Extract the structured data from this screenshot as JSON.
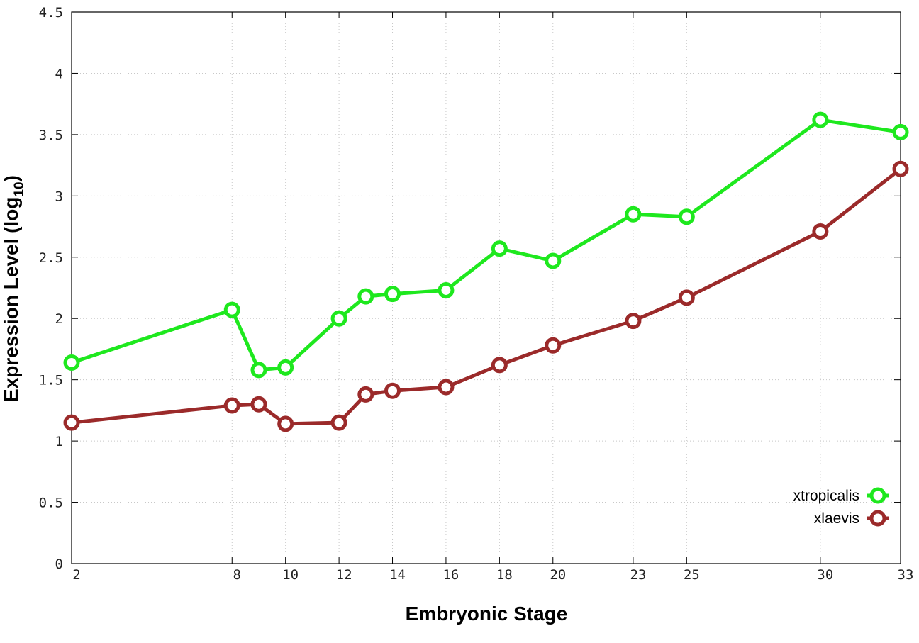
{
  "chart_data": {
    "type": "line",
    "xlabel": "Embryonic Stage",
    "ylabel": "Expression Level (log",
    "ylabel_subscript": "10",
    "ylabel_close": ")",
    "xlim": [
      2,
      33
    ],
    "ylim": [
      0,
      4.5
    ],
    "x_ticks": [
      2,
      8,
      10,
      12,
      14,
      16,
      18,
      20,
      23,
      25,
      30,
      33
    ],
    "y_ticks": [
      0,
      0.5,
      1,
      1.5,
      2,
      2.5,
      3,
      3.5,
      4,
      4.5
    ],
    "y_tick_labels": [
      "0",
      "0.5",
      "1",
      "1.5",
      "2",
      "2.5",
      "3",
      "3.5",
      "4",
      "4.5"
    ],
    "grid": true,
    "legend_position": "bottom-right",
    "x": [
      2,
      8,
      9,
      10,
      12,
      13,
      14,
      16,
      18,
      20,
      23,
      25,
      30,
      33
    ],
    "series": [
      {
        "name": "xtropicalis",
        "color": "#1ee81e",
        "values": [
          1.64,
          2.07,
          1.58,
          1.6,
          2.0,
          2.18,
          2.2,
          2.23,
          2.57,
          2.47,
          2.85,
          2.83,
          3.62,
          3.52
        ]
      },
      {
        "name": "xlaevis",
        "color": "#9b2a2a",
        "values": [
          1.15,
          1.29,
          1.3,
          1.14,
          1.15,
          1.38,
          1.41,
          1.44,
          1.62,
          1.78,
          1.98,
          2.17,
          2.71,
          3.22
        ]
      }
    ]
  }
}
